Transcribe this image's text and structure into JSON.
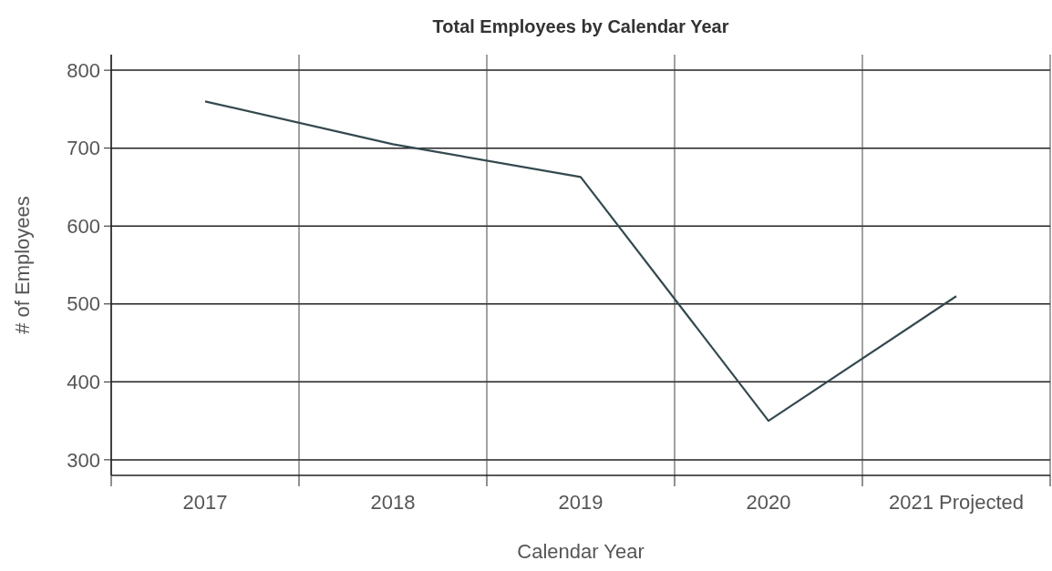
{
  "chart_data": {
    "type": "line",
    "title": "Total Employees by Calendar Year",
    "xlabel": "Calendar Year",
    "ylabel": "# of Employees",
    "categories": [
      "2017",
      "2018",
      "2019",
      "2020",
      "2021 Projected"
    ],
    "series": [
      {
        "color": "#34494f",
        "values": [
          760,
          705,
          663,
          350,
          510
        ]
      }
    ],
    "ylim": [
      280,
      820
    ],
    "yticks": [
      300,
      400,
      500,
      600,
      700,
      800
    ],
    "grid": true,
    "marker": "none",
    "line_style": "solid"
  }
}
